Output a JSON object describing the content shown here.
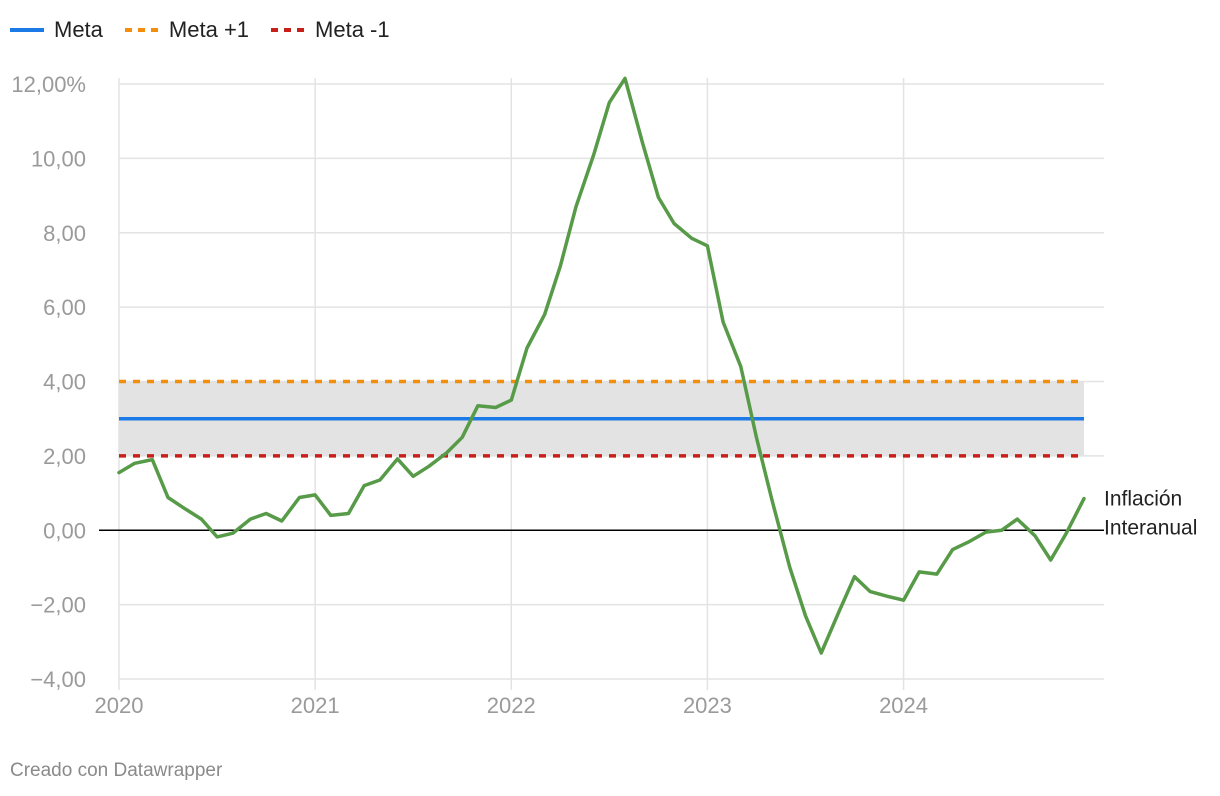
{
  "chart_data": {
    "type": "line",
    "legend_position": "top-left",
    "grid": true,
    "x_unit": "year",
    "xlim": [
      2020,
      2024.92
    ],
    "ylim": [
      -4,
      12
    ],
    "x_ticks": [
      2020,
      2021,
      2022,
      2023,
      2024
    ],
    "x_tick_labels": [
      "2020",
      "2021",
      "2022",
      "2023",
      "2024"
    ],
    "y_ticks": [
      -4,
      -2,
      0,
      2,
      4,
      6,
      8,
      10,
      12
    ],
    "y_tick_labels": [
      "−4,00",
      "−2,00",
      "0,00",
      "2,00",
      "4,00",
      "6,00",
      "8,00",
      "10,00",
      "12,00%"
    ],
    "band": {
      "from": 2,
      "to": 4,
      "color": "#e3e3e3"
    },
    "zero_line_color": "#000000",
    "reference_lines": [
      {
        "name": "Meta",
        "value": 3,
        "color": "#1b7ae6",
        "style": "solid"
      },
      {
        "name": "Meta +1",
        "value": 4,
        "color": "#f28e0c",
        "style": "dashed"
      },
      {
        "name": "Meta -1",
        "value": 2,
        "color": "#c7201a",
        "style": "dashed"
      }
    ],
    "series": [
      {
        "label_lines": [
          "Inflación",
          "Interanual"
        ],
        "color": "#579a47",
        "x": [
          2020.0,
          2020.08,
          2020.17,
          2020.25,
          2020.33,
          2020.42,
          2020.5,
          2020.58,
          2020.67,
          2020.75,
          2020.83,
          2020.92,
          2021.0,
          2021.08,
          2021.17,
          2021.25,
          2021.33,
          2021.42,
          2021.5,
          2021.58,
          2021.67,
          2021.75,
          2021.83,
          2021.92,
          2022.0,
          2022.08,
          2022.17,
          2022.25,
          2022.33,
          2022.42,
          2022.5,
          2022.58,
          2022.67,
          2022.75,
          2022.83,
          2022.92,
          2023.0,
          2023.08,
          2023.17,
          2023.25,
          2023.33,
          2023.42,
          2023.5,
          2023.58,
          2023.67,
          2023.75,
          2023.83,
          2023.92,
          2024.0,
          2024.08,
          2024.17,
          2024.25,
          2024.33,
          2024.42,
          2024.5,
          2024.58,
          2024.67,
          2024.75,
          2024.83,
          2024.92
        ],
        "values": [
          1.55,
          1.8,
          1.9,
          0.88,
          0.6,
          0.3,
          -0.18,
          -0.08,
          0.3,
          0.45,
          0.25,
          0.88,
          0.95,
          0.4,
          0.45,
          1.2,
          1.35,
          1.92,
          1.45,
          1.72,
          2.08,
          2.5,
          3.35,
          3.3,
          3.5,
          4.9,
          5.8,
          7.1,
          8.7,
          10.1,
          11.5,
          12.15,
          10.4,
          8.95,
          8.25,
          7.85,
          7.65,
          5.6,
          4.4,
          2.5,
          0.8,
          -1.0,
          -2.3,
          -3.3,
          -2.2,
          -1.25,
          -1.65,
          -1.78,
          -1.88,
          -1.12,
          -1.18,
          -0.52,
          -0.32,
          -0.05,
          0.0,
          0.3,
          -0.15,
          -0.8,
          -0.08,
          0.85
        ]
      }
    ]
  },
  "footer": {
    "credit": "Creado con Datawrapper"
  }
}
